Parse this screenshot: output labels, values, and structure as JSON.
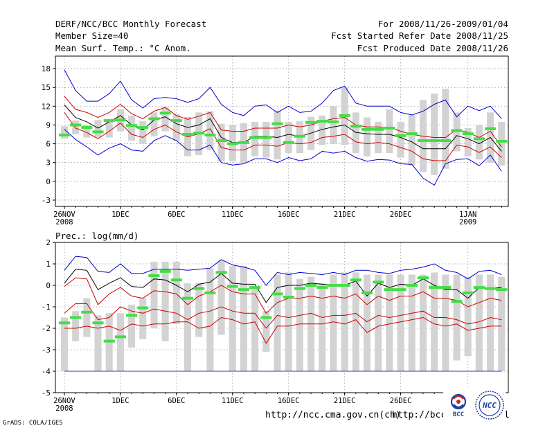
{
  "header": {
    "left_line1": "DERF/NCC/BCC Monthly Forecast",
    "left_line2": "Member Size=40",
    "left_line3": "Mean Surf. Temp.: °C Anom.",
    "right_line1": "For 2008/11/26-2009/01/04",
    "right_line2": "Fcst Started Refer Date 2008/11/25",
    "right_line3": "Fcst Produced Date 2008/11/26"
  },
  "x_ticks": [
    {
      "day": 0,
      "label": "26NOV",
      "sub": "2008"
    },
    {
      "day": 5,
      "label": "1DEC",
      "sub": ""
    },
    {
      "day": 10,
      "label": "6DEC",
      "sub": ""
    },
    {
      "day": 15,
      "label": "11DEC",
      "sub": ""
    },
    {
      "day": 20,
      "label": "16DEC",
      "sub": ""
    },
    {
      "day": 25,
      "label": "21DEC",
      "sub": ""
    },
    {
      "day": 30,
      "label": "26DEC",
      "sub": ""
    },
    {
      "day": 36,
      "label": "1JAN",
      "sub": "2009"
    }
  ],
  "chart_data": [
    {
      "type": "line",
      "id": "temp",
      "title": "Mean Surf. Temp.: °C Anom.",
      "ylim": [
        -4,
        20
      ],
      "yticks": [
        18,
        15,
        12,
        9,
        6,
        3,
        0,
        -3
      ],
      "xlim": [
        -0.8,
        39.6
      ],
      "series": [
        {
          "name": "upper",
          "color": "#0000cc",
          "values": [
            17.8,
            14.5,
            12.8,
            12.8,
            14.0,
            16.0,
            13.0,
            11.7,
            13.2,
            13.4,
            13.2,
            12.6,
            13.2,
            15.0,
            12.3,
            11.0,
            10.5,
            12.0,
            12.2,
            11.0,
            12.0,
            11.0,
            11.2,
            12.5,
            14.5,
            15.2,
            12.5,
            12.0,
            12.0,
            12.0,
            11.0,
            10.6,
            11.2,
            12.3,
            13.0,
            10.3,
            12.0,
            11.3,
            12.0,
            10.0
          ]
        },
        {
          "name": "upper_mid",
          "color": "#cc0000",
          "values": [
            13.6,
            11.5,
            11.0,
            10.2,
            11.0,
            12.3,
            10.8,
            10.0,
            11.2,
            11.8,
            10.5,
            9.9,
            10.4,
            11.0,
            8.2,
            8.0,
            8.0,
            8.5,
            8.5,
            8.5,
            9.0,
            8.7,
            9.0,
            9.6,
            10.0,
            10.2,
            9.0,
            8.7,
            8.7,
            8.6,
            8.0,
            7.5,
            7.2,
            7.0,
            7.0,
            8.3,
            7.8,
            7.0,
            8.0,
            5.5
          ]
        },
        {
          "name": "mean",
          "color": "#000000",
          "values": [
            12.2,
            10.2,
            9.5,
            8.5,
            9.5,
            10.5,
            9.0,
            8.2,
            9.8,
            10.3,
            9.2,
            8.6,
            9.0,
            10.0,
            7.0,
            6.2,
            6.2,
            7.2,
            7.2,
            7.0,
            7.5,
            7.2,
            7.7,
            8.3,
            8.7,
            9.0,
            7.8,
            7.6,
            7.5,
            7.5,
            7.0,
            6.3,
            5.2,
            5.2,
            5.2,
            7.3,
            6.8,
            6.0,
            7.0,
            4.8
          ]
        },
        {
          "name": "lower_mid",
          "color": "#cc0000",
          "values": [
            11.0,
            8.5,
            7.8,
            6.8,
            8.0,
            9.3,
            7.5,
            7.0,
            8.3,
            9.0,
            7.9,
            7.1,
            7.6,
            8.4,
            5.4,
            5.0,
            5.0,
            5.8,
            5.8,
            5.6,
            6.2,
            6.0,
            6.2,
            7.0,
            7.2,
            7.5,
            6.3,
            6.0,
            6.2,
            6.0,
            5.4,
            4.8,
            3.6,
            3.3,
            3.3,
            5.8,
            5.5,
            4.6,
            5.5,
            3.8
          ]
        },
        {
          "name": "lower",
          "color": "#0000cc",
          "values": [
            8.3,
            6.7,
            5.5,
            4.2,
            5.3,
            6.0,
            5.0,
            4.8,
            6.5,
            7.3,
            6.5,
            5.0,
            5.0,
            5.8,
            3.0,
            2.6,
            2.8,
            3.6,
            3.6,
            3.0,
            3.8,
            3.3,
            3.6,
            4.8,
            4.5,
            4.8,
            3.8,
            3.2,
            3.5,
            3.4,
            2.8,
            2.7,
            0.5,
            -0.6,
            2.8,
            3.5,
            3.6,
            2.5,
            4.2,
            1.6
          ]
        }
      ],
      "boxes": {
        "color": "#d3d3d3",
        "low": [
          6.8,
          7.5,
          7.0,
          7.0,
          7.0,
          8.0,
          6.5,
          6.0,
          7.2,
          8.0,
          6.5,
          4.0,
          4.2,
          5.0,
          3.2,
          3.2,
          3.0,
          4.0,
          3.8,
          3.5,
          4.5,
          4.5,
          5.0,
          5.8,
          6.0,
          5.8,
          4.5,
          4.0,
          4.5,
          4.5,
          3.8,
          2.5,
          1.5,
          1.0,
          2.0,
          4.8,
          4.0,
          3.5,
          3.0,
          2.5
        ],
        "high": [
          8.8,
          9.7,
          9.0,
          9.8,
          10.0,
          11.5,
          10.5,
          9.6,
          11.0,
          11.8,
          10.7,
          10.3,
          11.0,
          11.2,
          9.2,
          9.0,
          9.3,
          9.5,
          9.5,
          11.3,
          9.5,
          9.6,
          10.3,
          10.5,
          12.0,
          15.0,
          11.0,
          10.2,
          9.5,
          11.5,
          9.5,
          10.6,
          13.0,
          14.0,
          14.8,
          11.0,
          8.5,
          9.0,
          11.0,
          9.5
        ]
      },
      "marks": {
        "color": "#44dd44",
        "values": [
          7.4,
          9.0,
          8.6,
          7.9,
          9.7,
          9.8,
          8.9,
          8.6,
          10.0,
          10.9,
          9.7,
          7.5,
          7.7,
          7.4,
          6.5,
          6.0,
          6.2,
          7.0,
          7.0,
          9.2,
          6.2,
          7.2,
          9.4,
          9.6,
          9.5,
          10.5,
          8.8,
          8.3,
          8.3,
          8.5,
          7.3,
          7.6,
          6.5,
          6.5,
          6.5,
          8.1,
          7.6,
          6.8,
          8.4,
          6.4
        ]
      },
      "baseline": null
    },
    {
      "type": "line",
      "id": "prec",
      "title": "Prec.: log(mm/d)",
      "ylim": [
        -5,
        2
      ],
      "yticks": [
        2,
        1,
        0,
        -1,
        -2,
        -3,
        -4,
        -5
      ],
      "xlim": [
        -0.8,
        39.6
      ],
      "series": [
        {
          "name": "upper",
          "color": "#0000cc",
          "values": [
            0.7,
            1.35,
            1.3,
            0.65,
            0.6,
            1.0,
            0.55,
            0.55,
            0.75,
            0.75,
            0.75,
            0.7,
            0.75,
            0.8,
            1.2,
            0.95,
            0.85,
            0.7,
            0.0,
            0.6,
            0.5,
            0.6,
            0.55,
            0.5,
            0.6,
            0.5,
            0.7,
            0.7,
            0.6,
            0.55,
            0.7,
            0.75,
            0.85,
            1.0,
            0.7,
            0.6,
            0.3,
            0.65,
            0.7,
            0.5
          ]
        },
        {
          "name": "upper_mid",
          "color": "#000000",
          "values": [
            0.1,
            0.75,
            0.7,
            -0.2,
            0.1,
            0.35,
            -0.05,
            -0.1,
            0.3,
            0.25,
            0.0,
            -0.3,
            0.05,
            0.15,
            0.55,
            0.1,
            0.05,
            0.05,
            -0.8,
            -0.1,
            0.0,
            0.0,
            0.1,
            0.05,
            0.0,
            0.0,
            0.2,
            -0.5,
            0.1,
            -0.1,
            0.05,
            0.0,
            0.3,
            0.0,
            -0.2,
            -0.2,
            -0.6,
            -0.1,
            -0.15,
            -0.1
          ]
        },
        {
          "name": "mean",
          "color": "#cc0000",
          "values": [
            -0.05,
            0.35,
            0.3,
            -0.9,
            -0.4,
            -0.1,
            -0.5,
            -0.6,
            -0.25,
            -0.3,
            -0.4,
            -0.9,
            -0.5,
            -0.3,
            0.0,
            -0.3,
            -0.4,
            -0.4,
            -1.3,
            -0.8,
            -0.6,
            -0.6,
            -0.5,
            -0.6,
            -0.5,
            -0.6,
            -0.4,
            -0.9,
            -0.5,
            -0.7,
            -0.5,
            -0.5,
            -0.3,
            -0.6,
            -0.6,
            -0.7,
            -1.0,
            -0.8,
            -0.6,
            -0.7
          ]
        },
        {
          "name": "lower_mid",
          "color": "#cc0000",
          "values": [
            -1.3,
            -0.85,
            -0.85,
            -1.6,
            -1.5,
            -1.0,
            -1.2,
            -1.3,
            -1.1,
            -1.2,
            -1.3,
            -1.6,
            -1.3,
            -1.2,
            -1.0,
            -1.2,
            -1.3,
            -1.3,
            -2.0,
            -1.4,
            -1.5,
            -1.4,
            -1.3,
            -1.5,
            -1.4,
            -1.4,
            -1.3,
            -1.7,
            -1.4,
            -1.5,
            -1.4,
            -1.3,
            -1.2,
            -1.5,
            -1.5,
            -1.6,
            -1.8,
            -1.7,
            -1.5,
            -1.6
          ]
        },
        {
          "name": "lower",
          "color": "#cc0000",
          "values": [
            -2.0,
            -2.0,
            -1.9,
            -2.0,
            -1.9,
            -2.1,
            -1.8,
            -1.9,
            -1.8,
            -1.8,
            -1.7,
            -1.7,
            -2.0,
            -1.9,
            -1.5,
            -1.6,
            -1.8,
            -1.7,
            -2.7,
            -1.9,
            -1.9,
            -1.8,
            -1.8,
            -1.8,
            -1.7,
            -1.8,
            -1.6,
            -2.2,
            -1.9,
            -1.8,
            -1.7,
            -1.6,
            -1.5,
            -1.8,
            -1.9,
            -1.8,
            -2.1,
            -2.0,
            -1.9,
            -1.9
          ]
        }
      ],
      "boxes": {
        "color": "#d3d3d3",
        "low": [
          -4.0,
          -2.6,
          -2.4,
          -4.0,
          -4.0,
          -4.0,
          -2.9,
          -2.5,
          -2.0,
          -2.6,
          -1.8,
          -4.0,
          -2.4,
          -4.0,
          -2.3,
          -4.0,
          -4.0,
          -4.0,
          -3.1,
          -4.0,
          -4.0,
          -4.0,
          -4.0,
          -4.0,
          -4.0,
          -4.0,
          -4.0,
          -4.0,
          -4.0,
          -4.0,
          -4.0,
          -4.0,
          -4.0,
          -4.0,
          -4.0,
          -3.5,
          -3.3,
          -4.0,
          -4.0,
          -4.0
        ],
        "high": [
          -1.5,
          -1.2,
          -0.6,
          -1.4,
          -1.3,
          -1.3,
          -0.9,
          -0.6,
          1.1,
          1.1,
          1.1,
          0.1,
          0.1,
          0.8,
          1.15,
          0.9,
          0.9,
          -0.1,
          -1.2,
          0.5,
          0.6,
          0.3,
          0.4,
          0.1,
          0.5,
          0.6,
          0.6,
          0.5,
          0.5,
          0.5,
          0.5,
          0.5,
          0.5,
          0.6,
          0.5,
          0.5,
          0.4,
          0.5,
          0.5,
          0.4
        ]
      },
      "marks": {
        "color": "#44dd44",
        "values": [
          -1.75,
          -1.5,
          -1.25,
          -1.75,
          -2.6,
          -2.4,
          -1.4,
          -1.05,
          0.45,
          0.65,
          0.25,
          -0.6,
          -0.15,
          -0.35,
          0.6,
          -0.05,
          -0.2,
          -0.1,
          -1.5,
          -0.4,
          -0.55,
          -0.15,
          0.0,
          -0.1,
          0.0,
          0.0,
          0.25,
          -0.35,
          0.15,
          -0.2,
          -0.2,
          0.0,
          0.35,
          -0.1,
          -0.1,
          -0.75,
          -0.35,
          -0.1,
          -0.15,
          -0.2
        ]
      },
      "baseline": {
        "value": -4,
        "color": "#3333cc"
      }
    }
  ],
  "footer": {
    "grads_credit": "GrADS: COLA/IGES",
    "url1": "http://ncc.cma.gov.cn(ch)",
    "url2": "http://bcc.",
    "url2_tail": "l",
    "logo_bcc_text": "BCC",
    "logo_ncc_text": "NCC"
  }
}
